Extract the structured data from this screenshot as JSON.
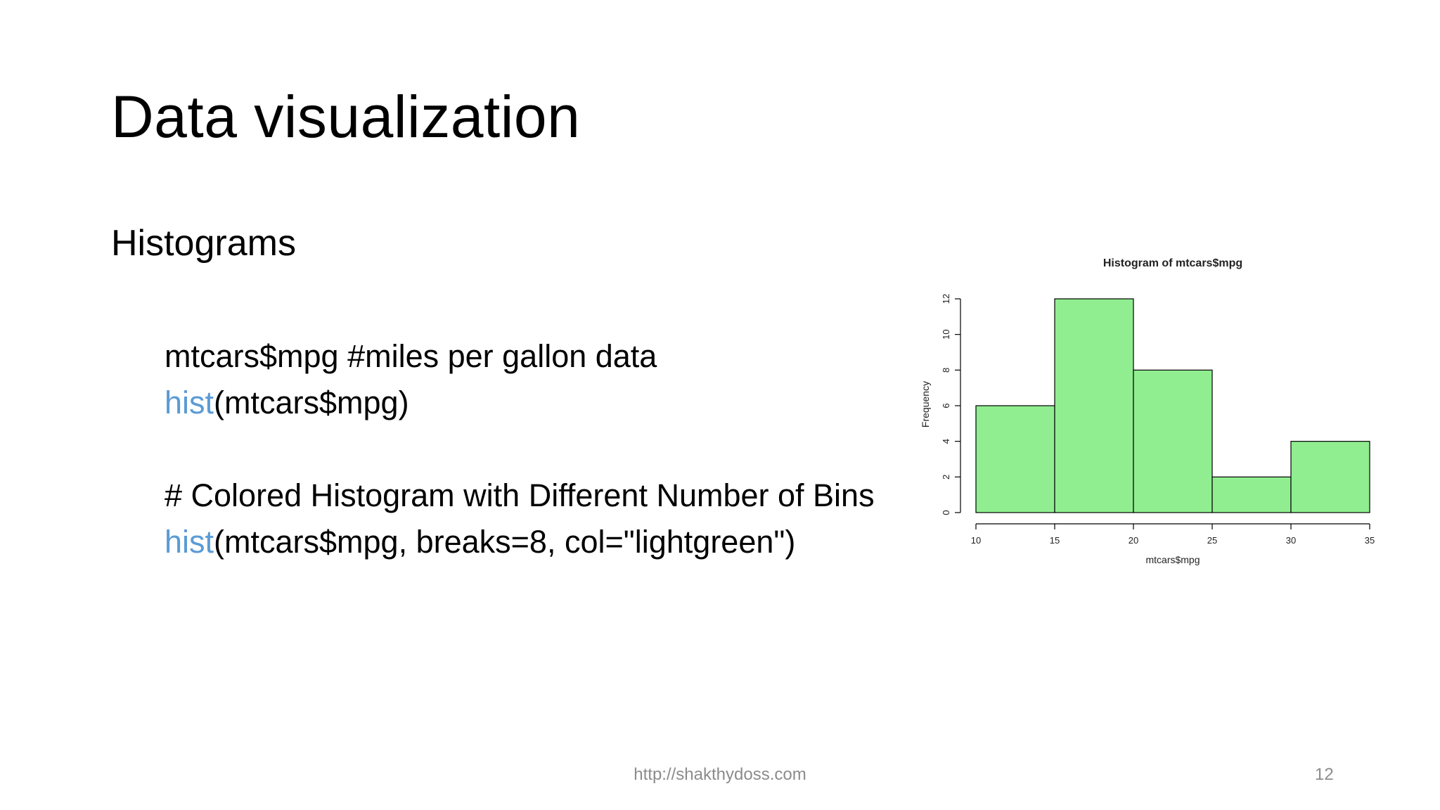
{
  "slide": {
    "title": "Data visualization",
    "subtitle": "Histograms",
    "code": {
      "line1": "mtcars$mpg  #miles per gallon data",
      "line2_fn": "hist",
      "line2_rest": "(mtcars$mpg)",
      "line3": "# Colored Histogram with Different Number of Bins",
      "line4_fn": "hist",
      "line4_rest": "(mtcars$mpg, breaks=8, col=\"lightgreen\")"
    },
    "footer_url": "http://shakthydoss.com",
    "page_number": "12"
  },
  "colors": {
    "function_color": "#5b9bd5",
    "bar_fill": "#90ee90",
    "footer_text": "#8c8c8c"
  },
  "chart_data": {
    "type": "bar",
    "title": "Histogram of mtcars$mpg",
    "xlabel": "mtcars$mpg",
    "ylabel": "Frequency",
    "bins": [
      {
        "from": 10,
        "to": 15,
        "count": 6
      },
      {
        "from": 15,
        "to": 20,
        "count": 12
      },
      {
        "from": 20,
        "to": 25,
        "count": 8
      },
      {
        "from": 25,
        "to": 30,
        "count": 2
      },
      {
        "from": 30,
        "to": 35,
        "count": 4
      }
    ],
    "xticks": [
      10,
      15,
      20,
      25,
      30,
      35
    ],
    "yticks": [
      0,
      2,
      4,
      6,
      8,
      10,
      12
    ],
    "xlim": [
      10,
      35
    ],
    "ylim": [
      0,
      12
    ],
    "grid": false
  }
}
